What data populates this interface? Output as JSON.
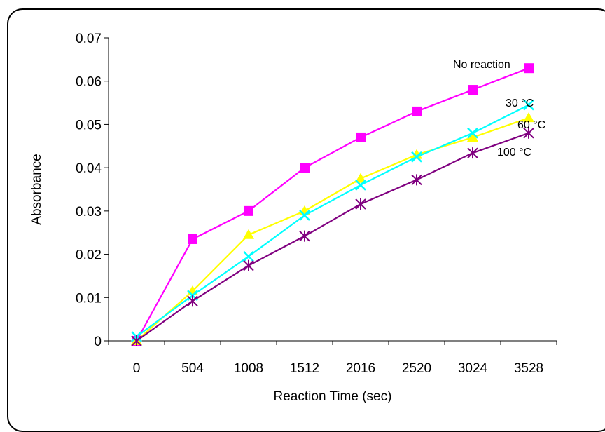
{
  "chart_data": {
    "type": "line",
    "categories": [
      "0",
      "504",
      "1008",
      "1512",
      "2016",
      "2520",
      "3024",
      "3528"
    ],
    "xlabel": "Reaction Time (sec)",
    "ylabel": "Absorbance",
    "ylim": [
      0,
      0.07
    ],
    "yticks": [
      "0",
      "0.01",
      "0.02",
      "0.03",
      "0.04",
      "0.05",
      "0.06",
      "0.07"
    ],
    "grid": false,
    "legend": "none",
    "series": [
      {
        "name": "No reaction",
        "marker": "square",
        "color": "#ff00ff",
        "values": [
          0.0,
          0.0235,
          0.03,
          0.04,
          0.047,
          0.053,
          0.058,
          0.063
        ]
      },
      {
        "name": "30 °C",
        "marker": "x",
        "color": "#00ffff",
        "values": [
          0.001,
          0.0105,
          0.0195,
          0.029,
          0.036,
          0.0425,
          0.048,
          0.0545
        ]
      },
      {
        "name": "60 °C",
        "marker": "triangle",
        "color": "#ffff00",
        "values": [
          0.0,
          0.0115,
          0.0245,
          0.03,
          0.0375,
          0.043,
          0.047,
          0.0515
        ]
      },
      {
        "name": "100 °C",
        "marker": "asterisk",
        "color": "#800080",
        "values": [
          0.0,
          0.0092,
          0.0174,
          0.0242,
          0.0316,
          0.0372,
          0.0434,
          0.048
        ]
      }
    ]
  }
}
